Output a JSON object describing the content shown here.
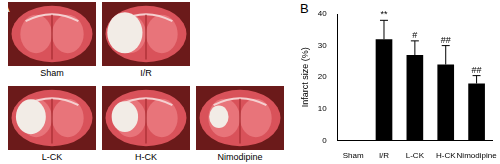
{
  "image_panel": {
    "label": "A",
    "captions": [
      "Sham",
      "I/R",
      "L-CK",
      "H-CK",
      "Nimodipine"
    ]
  },
  "chart_panel_label": "B",
  "chart_data": {
    "type": "bar",
    "y_label": "Infarct size (%)",
    "categories": [
      "Sham",
      "I/R",
      "L-CK",
      "H-CK",
      "Nimodipine"
    ],
    "values": [
      0,
      32,
      27,
      24,
      18
    ],
    "errors": [
      null,
      6,
      4.5,
      6,
      2.5
    ],
    "significance": [
      null,
      "**",
      "#",
      "##",
      "##"
    ],
    "color": "#000000",
    "ylim": [
      0,
      40
    ],
    "yticks": [
      0,
      10,
      20,
      30,
      40
    ],
    "grid": false
  }
}
